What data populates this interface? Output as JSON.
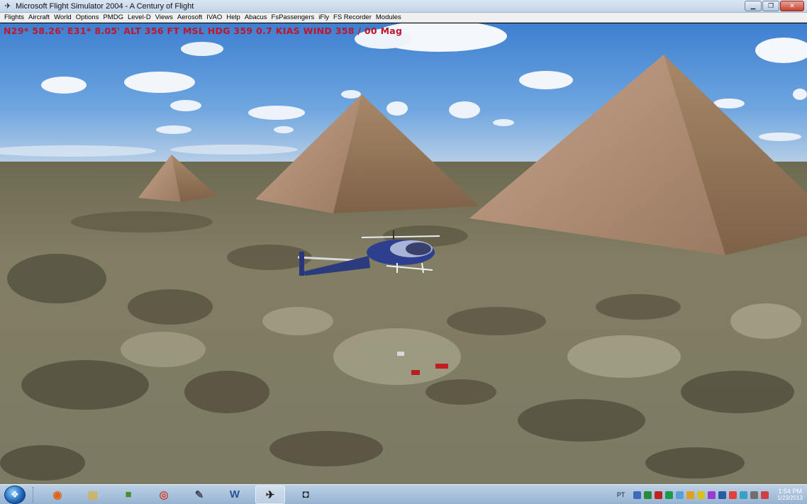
{
  "window": {
    "title": "Microsoft Flight Simulator 2004 - A Century of Flight",
    "controls": [
      "minimize",
      "restore",
      "close"
    ]
  },
  "menu": {
    "items": [
      "Flights",
      "Aircraft",
      "World",
      "Options",
      "PMDG",
      "Level-D",
      "Views",
      "Aerosoft",
      "IVAO",
      "Help",
      "Abacus",
      "FsPassengers",
      "iFly",
      "FS Recorder",
      "Modules"
    ]
  },
  "hud": {
    "text": "N29* 58.26'  E31* 8.05'  ALT  356 FT  MSL  HDG 359   0.7 KIAS  WIND 358 / 00 Mag",
    "color": "#c0152a"
  },
  "taskbar": {
    "start_icon": "windows-orb-icon",
    "apps": [
      {
        "name": "media-center-icon",
        "glyph": "◉",
        "color": "#e06010",
        "active": false
      },
      {
        "name": "file-explorer-icon",
        "glyph": "▤",
        "color": "#d8b040",
        "active": false
      },
      {
        "name": "minecraft-icon",
        "glyph": "■",
        "color": "#4a8a30",
        "active": false
      },
      {
        "name": "chrome-icon",
        "glyph": "◎",
        "color": "#d04030",
        "active": false
      },
      {
        "name": "tool-icon",
        "glyph": "✎",
        "color": "#445",
        "active": false
      },
      {
        "name": "word-icon",
        "glyph": "W",
        "color": "#2b5597",
        "active": false
      },
      {
        "name": "flight-simulator-icon",
        "glyph": "✈",
        "color": "#222",
        "active": true
      },
      {
        "name": "camera-icon",
        "glyph": "◘",
        "color": "#222",
        "active": false
      }
    ],
    "tray": {
      "language": "PT",
      "icon_colors": [
        "#3a6db5",
        "#2a8a3a",
        "#c02020",
        "#1a9a4a",
        "#5aa0d8",
        "#e0a020",
        "#d8c020",
        "#9a3ad0",
        "#2a5aa0",
        "#e04040",
        "#3aa0c0",
        "#707070",
        "#d04040"
      ],
      "time": "1:54 PM",
      "date": "1/23/2013"
    }
  }
}
